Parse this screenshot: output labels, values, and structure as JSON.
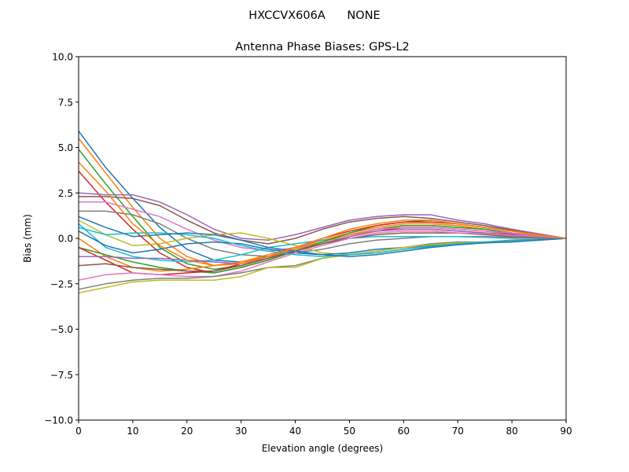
{
  "chart_data": {
    "type": "line",
    "suptitle": "HXCCVX606A      NONE",
    "title": "Antenna Phase Biases: GPS-L2",
    "xlabel": "Elevation angle (degrees)",
    "ylabel": "Bias (mm)",
    "xlim": [
      0,
      90
    ],
    "ylim": [
      -10,
      10
    ],
    "xticks": [
      0,
      10,
      20,
      30,
      40,
      50,
      60,
      70,
      80,
      90
    ],
    "xtick_labels": [
      "0",
      "10",
      "20",
      "30",
      "40",
      "50",
      "60",
      "70",
      "80",
      "90"
    ],
    "yticks": [
      10,
      7.5,
      5,
      2.5,
      0,
      -2.5,
      -5,
      -7.5,
      -10
    ],
    "ytick_labels": [
      "10.0",
      "7.5",
      "5.0",
      "2.5",
      "0.0",
      "−2.5",
      "−5.0",
      "−7.5",
      "−10.0"
    ],
    "grid": false,
    "colors": [
      "#1f77b4",
      "#ff7f0e",
      "#2ca02c",
      "#d62728",
      "#9467bd",
      "#8c564b",
      "#e377c2",
      "#7f7f7f",
      "#bcbd22",
      "#17becf"
    ],
    "x": [
      0,
      5,
      10,
      15,
      20,
      25,
      30,
      35,
      40,
      45,
      50,
      55,
      60,
      65,
      70,
      75,
      80,
      85,
      90
    ],
    "series": [
      {
        "values": [
          5.9,
          3.9,
          2.2,
          0.6,
          -0.6,
          -1.2,
          -1.3,
          -1.0,
          -0.6,
          -0.2,
          0.2,
          0.5,
          0.7,
          0.7,
          0.6,
          0.5,
          0.3,
          0.15,
          0
        ]
      },
      {
        "values": [
          5.5,
          3.6,
          1.7,
          0.0,
          -1.0,
          -1.5,
          -1.3,
          -0.9,
          -0.5,
          -0.1,
          0.3,
          0.6,
          0.8,
          0.8,
          0.7,
          0.5,
          0.3,
          0.15,
          0
        ]
      },
      {
        "values": [
          4.9,
          3.0,
          1.2,
          -0.5,
          -1.4,
          -1.7,
          -1.5,
          -1.1,
          -0.6,
          -0.2,
          0.2,
          0.5,
          0.7,
          0.7,
          0.6,
          0.5,
          0.3,
          0.1,
          0
        ]
      },
      {
        "values": [
          3.7,
          2.0,
          0.5,
          -0.8,
          -1.6,
          -1.9,
          -1.6,
          -1.2,
          -0.7,
          -0.3,
          0.1,
          0.4,
          0.6,
          0.6,
          0.5,
          0.4,
          0.25,
          0.1,
          0
        ]
      },
      {
        "values": [
          2.5,
          2.4,
          2.4,
          2.0,
          1.3,
          0.5,
          0.0,
          -0.1,
          0.2,
          0.6,
          1.0,
          1.2,
          1.3,
          1.3,
          1.0,
          0.8,
          0.5,
          0.25,
          0
        ]
      },
      {
        "values": [
          2.3,
          2.3,
          2.2,
          1.8,
          1.0,
          0.3,
          -0.1,
          -0.3,
          0.0,
          0.5,
          0.9,
          1.1,
          1.2,
          1.1,
          0.9,
          0.7,
          0.45,
          0.2,
          0
        ]
      },
      {
        "values": [
          2.0,
          2.0,
          1.6,
          1.2,
          0.5,
          -0.1,
          -0.5,
          -0.7,
          -0.5,
          -0.2,
          0.2,
          0.5,
          0.6,
          0.6,
          0.5,
          0.4,
          0.3,
          0.1,
          0
        ]
      },
      {
        "values": [
          1.5,
          1.5,
          1.3,
          0.8,
          0.0,
          -0.6,
          -0.9,
          -1.0,
          -0.8,
          -0.6,
          -0.3,
          -0.1,
          0.0,
          0.1,
          0.1,
          0.1,
          0.05,
          0.0,
          0
        ]
      },
      {
        "values": [
          1.0,
          0.2,
          -0.4,
          -0.3,
          0.0,
          0.2,
          0.3,
          0.0,
          -0.4,
          -0.8,
          -0.9,
          -0.8,
          -0.6,
          -0.4,
          -0.3,
          -0.2,
          -0.1,
          -0.05,
          0
        ]
      },
      {
        "values": [
          0.8,
          -0.5,
          -1.0,
          -1.2,
          -1.3,
          -1.2,
          -0.9,
          -0.5,
          -0.3,
          -0.1,
          0.0,
          0.1,
          0.1,
          0.1,
          0.1,
          0.05,
          0.0,
          0.0,
          0
        ]
      },
      {
        "values": [
          0.4,
          -0.4,
          -0.8,
          -0.6,
          -0.3,
          -0.2,
          -0.3,
          -0.6,
          -0.8,
          -0.9,
          -0.8,
          -0.6,
          -0.5,
          -0.4,
          -0.3,
          -0.2,
          -0.15,
          -0.1,
          0
        ]
      },
      {
        "values": [
          0.0,
          -1.0,
          -1.6,
          -1.8,
          -1.7,
          -1.5,
          -1.3,
          -1.0,
          -0.6,
          -0.2,
          0.2,
          0.4,
          0.5,
          0.5,
          0.4,
          0.3,
          0.2,
          0.1,
          0
        ]
      },
      {
        "values": [
          -0.5,
          -0.9,
          -1.3,
          -1.6,
          -1.8,
          -1.9,
          -1.6,
          -1.2,
          -0.7,
          -0.2,
          0.3,
          0.7,
          0.9,
          1.0,
          0.8,
          0.6,
          0.4,
          0.2,
          0
        ]
      },
      {
        "values": [
          -0.5,
          -1.2,
          -1.9,
          -2.0,
          -1.9,
          -1.8,
          -1.4,
          -1.0,
          -0.5,
          0.0,
          0.4,
          0.7,
          0.9,
          0.9,
          0.8,
          0.6,
          0.4,
          0.2,
          0
        ]
      },
      {
        "values": [
          -1.0,
          -1.0,
          -1.1,
          -1.1,
          -1.2,
          -1.3,
          -1.4,
          -1.1,
          -0.7,
          -0.3,
          0.1,
          0.4,
          0.5,
          0.5,
          0.4,
          0.3,
          0.2,
          0.1,
          0
        ]
      },
      {
        "values": [
          -1.5,
          -1.4,
          -1.6,
          -1.7,
          -1.8,
          -1.8,
          -1.5,
          -1.1,
          -0.7,
          -0.3,
          0.0,
          0.2,
          0.3,
          0.3,
          0.3,
          0.2,
          0.1,
          0.05,
          0
        ]
      },
      {
        "values": [
          -2.3,
          -2.0,
          -1.9,
          -2.0,
          -2.1,
          -2.1,
          -1.8,
          -1.3,
          -0.8,
          -0.4,
          0.0,
          0.3,
          0.4,
          0.4,
          0.3,
          0.25,
          0.15,
          0.1,
          0
        ]
      },
      {
        "values": [
          -2.8,
          -2.5,
          -2.3,
          -2.2,
          -2.2,
          -2.1,
          -1.9,
          -1.6,
          -1.5,
          -1.1,
          -0.9,
          -0.7,
          -0.5,
          -0.3,
          -0.2,
          -0.2,
          -0.1,
          -0.05,
          0
        ]
      },
      {
        "values": [
          -3.0,
          -2.7,
          -2.4,
          -2.3,
          -2.3,
          -2.3,
          -2.1,
          -1.6,
          -1.6,
          -1.1,
          -0.9,
          -0.7,
          -0.5,
          -0.35,
          -0.25,
          -0.2,
          -0.15,
          -0.1,
          0
        ]
      },
      {
        "values": [
          0.6,
          0.2,
          0.3,
          0.3,
          0.2,
          0.0,
          -0.4,
          -0.7,
          -0.9,
          -1.0,
          -0.9,
          -0.8,
          -0.6,
          -0.45,
          -0.3,
          -0.2,
          -0.15,
          -0.1,
          0
        ]
      },
      {
        "values": [
          1.2,
          0.6,
          0.1,
          0.2,
          0.3,
          0.2,
          -0.1,
          -0.5,
          -0.7,
          -0.9,
          -1.0,
          -0.9,
          -0.7,
          -0.5,
          -0.35,
          -0.25,
          -0.2,
          -0.1,
          0
        ]
      },
      {
        "values": [
          4.2,
          2.6,
          0.8,
          -0.4,
          -1.2,
          -1.5,
          -1.4,
          -1.0,
          -0.5,
          0.0,
          0.5,
          0.8,
          1.0,
          1.0,
          0.8,
          0.6,
          0.4,
          0.2,
          0
        ]
      }
    ]
  }
}
